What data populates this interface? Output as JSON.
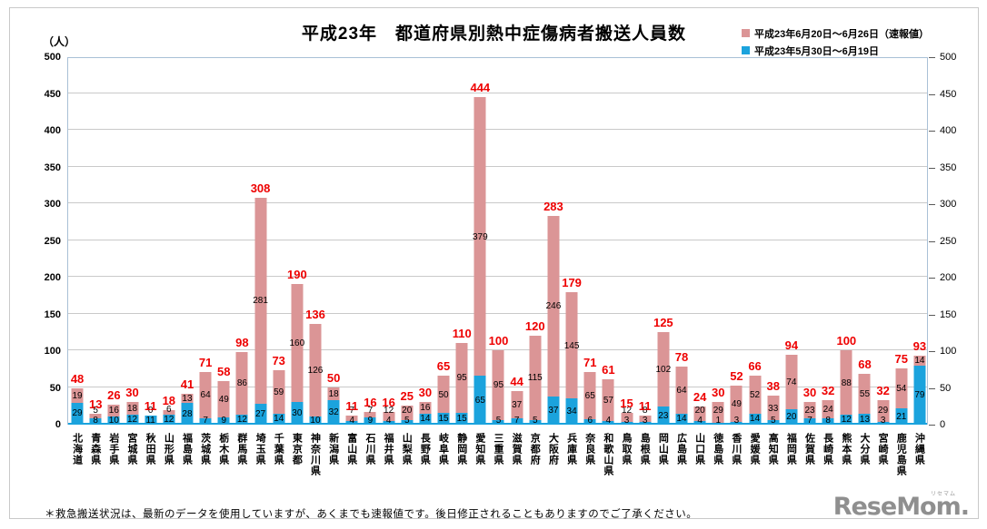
{
  "title": "平成23年　都道府県別熱中症傷病者搬送人員数",
  "y_unit": "（人）",
  "legend": [
    {
      "label": "平成23年6月20日～6月26日（速報値）",
      "color": "#db9596"
    },
    {
      "label": "平成23年5月30日～6月19日",
      "color": "#1ba3dd"
    }
  ],
  "footnote": "＊救急搬送状況は、最新のデータを使用していますが、あくまでも速報値です。後日修正されることもありますのでご了承ください。",
  "logo": {
    "text": "ReseMom.",
    "ruby": "リセマム"
  },
  "colors": {
    "series_late_june": "#db9596",
    "series_early_june": "#1ba3dd",
    "total_label": "#ee0000",
    "gridline": "#c9c9c9",
    "baseline": "#1ba3dd"
  },
  "chart_data": {
    "type": "bar",
    "stacked": true,
    "title": "平成23年　都道府県別熱中症傷病者搬送人員数",
    "ylabel": "（人）",
    "ylim": [
      0,
      500
    ],
    "ytick_step": 50,
    "grid": true,
    "legend_position": "top-right",
    "categories": [
      "北海道",
      "青森県",
      "岩手県",
      "宮城県",
      "秋田県",
      "山形県",
      "福島県",
      "茨城県",
      "栃木県",
      "群馬県",
      "埼玉県",
      "千葉県",
      "東京都",
      "神奈川県",
      "新潟県",
      "富山県",
      "石川県",
      "福井県",
      "山梨県",
      "長野県",
      "岐阜県",
      "静岡県",
      "愛知県",
      "三重県",
      "滋賀県",
      "京都府",
      "大阪府",
      "兵庫県",
      "奈良県",
      "和歌山県",
      "鳥取県",
      "島根県",
      "岡山県",
      "広島県",
      "山口県",
      "徳島県",
      "香川県",
      "愛媛県",
      "高知県",
      "福岡県",
      "佐賀県",
      "長崎県",
      "熊本県",
      "大分県",
      "宮崎県",
      "鹿児島県",
      "沖縄県"
    ],
    "series": [
      {
        "name": "平成23年6月20日～6月26日（速報値）",
        "color": "#db9596",
        "stack_order": "top",
        "values": [
          19,
          5,
          16,
          18,
          0,
          6,
          13,
          64,
          49,
          86,
          281,
          59,
          160,
          126,
          18,
          7,
          7,
          12,
          20,
          16,
          50,
          95,
          379,
          95,
          37,
          115,
          246,
          145,
          65,
          57,
          12,
          8,
          102,
          64,
          20,
          29,
          49,
          52,
          33,
          74,
          23,
          24,
          88,
          55,
          29,
          54,
          14
        ]
      },
      {
        "name": "平成23年5月30日～6月19日",
        "color": "#1ba3dd",
        "stack_order": "bottom",
        "values": [
          29,
          8,
          10,
          12,
          11,
          12,
          28,
          7,
          9,
          12,
          27,
          14,
          30,
          10,
          32,
          4,
          9,
          4,
          5,
          14,
          15,
          15,
          65,
          5,
          7,
          5,
          37,
          34,
          6,
          4,
          3,
          3,
          23,
          14,
          4,
          1,
          3,
          14,
          5,
          20,
          7,
          8,
          12,
          13,
          3,
          21,
          79
        ]
      }
    ],
    "totals": [
      48,
      13,
      26,
      30,
      11,
      18,
      41,
      71,
      58,
      98,
      308,
      73,
      190,
      136,
      50,
      11,
      16,
      16,
      25,
      30,
      65,
      110,
      444,
      100,
      44,
      120,
      283,
      179,
      71,
      61,
      15,
      11,
      125,
      78,
      24,
      30,
      52,
      66,
      38,
      94,
      30,
      32,
      100,
      68,
      32,
      75,
      93
    ]
  }
}
